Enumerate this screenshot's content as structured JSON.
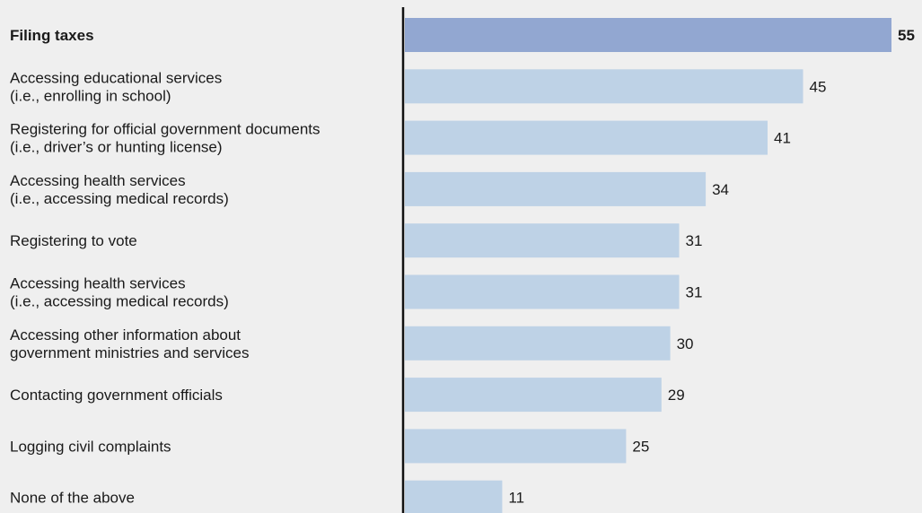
{
  "chart_data": {
    "type": "bar",
    "orientation": "horizontal",
    "title": "",
    "xlabel": "",
    "ylabel": "",
    "xlim": [
      0,
      55
    ],
    "grid": false,
    "legend": "none",
    "colors": {
      "highlight_bar": "#92a7d1",
      "bar": "#bed2e6",
      "axis": "#111111",
      "background": "#efefef"
    },
    "categories": [
      [
        "Filing taxes"
      ],
      [
        "Accessing educational services",
        "(i.e., enrolling in school)"
      ],
      [
        "Registering for official government documents",
        "(i.e., driver’s or hunting license)"
      ],
      [
        "Accessing health services",
        "(i.e., accessing medical records)"
      ],
      [
        "Registering to vote"
      ],
      [
        "Accessing health services",
        "(i.e., accessing medical records)"
      ],
      [
        "Accessing other information about",
        "government ministries and services"
      ],
      [
        "Contacting government officials"
      ],
      [
        "Logging civil complaints"
      ],
      [
        "None of the above"
      ]
    ],
    "values": [
      55,
      45,
      41,
      34,
      31,
      31,
      30,
      29,
      25,
      11
    ],
    "highlight": [
      0
    ]
  }
}
